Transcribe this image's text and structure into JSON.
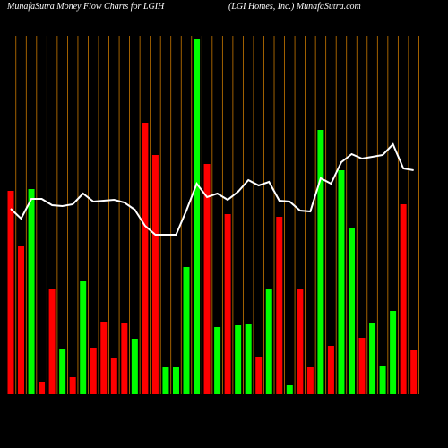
{
  "chart_data": {
    "type": "bar",
    "title": "MunafaSutra  Money Flow  Charts for LGIH",
    "subtitle": "(LGI Homes,  Inc.) MunafaSutra.com",
    "categories": [
      null,
      null,
      null,
      null,
      null,
      null,
      null,
      null,
      null,
      null,
      null,
      null,
      null,
      null,
      null,
      null,
      null,
      null,
      null,
      null,
      null,
      null,
      null,
      null,
      null,
      null,
      null,
      null,
      null,
      null,
      null,
      null,
      null,
      null,
      null,
      null,
      null,
      null,
      null,
      null
    ],
    "values": [
      227,
      166,
      229,
      14,
      118,
      50,
      19,
      126,
      52,
      81,
      41,
      80,
      62,
      303,
      267,
      30,
      30,
      142,
      397,
      257,
      75,
      201,
      77,
      78,
      42,
      118,
      198,
      10,
      117,
      30,
      295,
      54,
      250,
      185,
      63,
      79,
      32,
      93,
      212,
      49
    ],
    "colors": [
      "#ff0000",
      "#ff0000",
      "#00ff00",
      "#ff0000",
      "#ff0000",
      "#00ff00",
      "#ff0000",
      "#00ff00",
      "#ff0000",
      "#ff0000",
      "#ff0000",
      "#ff0000",
      "#00ff00",
      "#ff0000",
      "#ff0000",
      "#00ff00",
      "#00ff00",
      "#00ff00",
      "#00ff00",
      "#ff0000",
      "#00ff00",
      "#ff0000",
      "#00ff00",
      "#00ff00",
      "#ff0000",
      "#00ff00",
      "#ff0000",
      "#00ff00",
      "#ff0000",
      "#ff0000",
      "#00ff00",
      "#ff0000",
      "#00ff00",
      "#00ff00",
      "#ff0000",
      "#00ff00",
      "#00ff00",
      "#00ff00",
      "#ff0000",
      "#ff0000"
    ],
    "line": {
      "color": "#ffffff",
      "values": [
        207,
        196,
        218,
        218,
        211,
        210,
        212,
        224,
        215,
        216,
        217,
        214,
        206,
        188,
        178,
        178,
        178,
        205,
        235,
        220,
        224,
        217,
        226,
        239,
        233,
        237,
        216,
        215,
        205,
        204,
        241,
        235,
        259,
        268,
        263,
        265,
        267,
        279,
        252,
        250
      ]
    },
    "ylim": [
      0,
      400
    ],
    "grid": true,
    "grid_color": "#c87800"
  }
}
